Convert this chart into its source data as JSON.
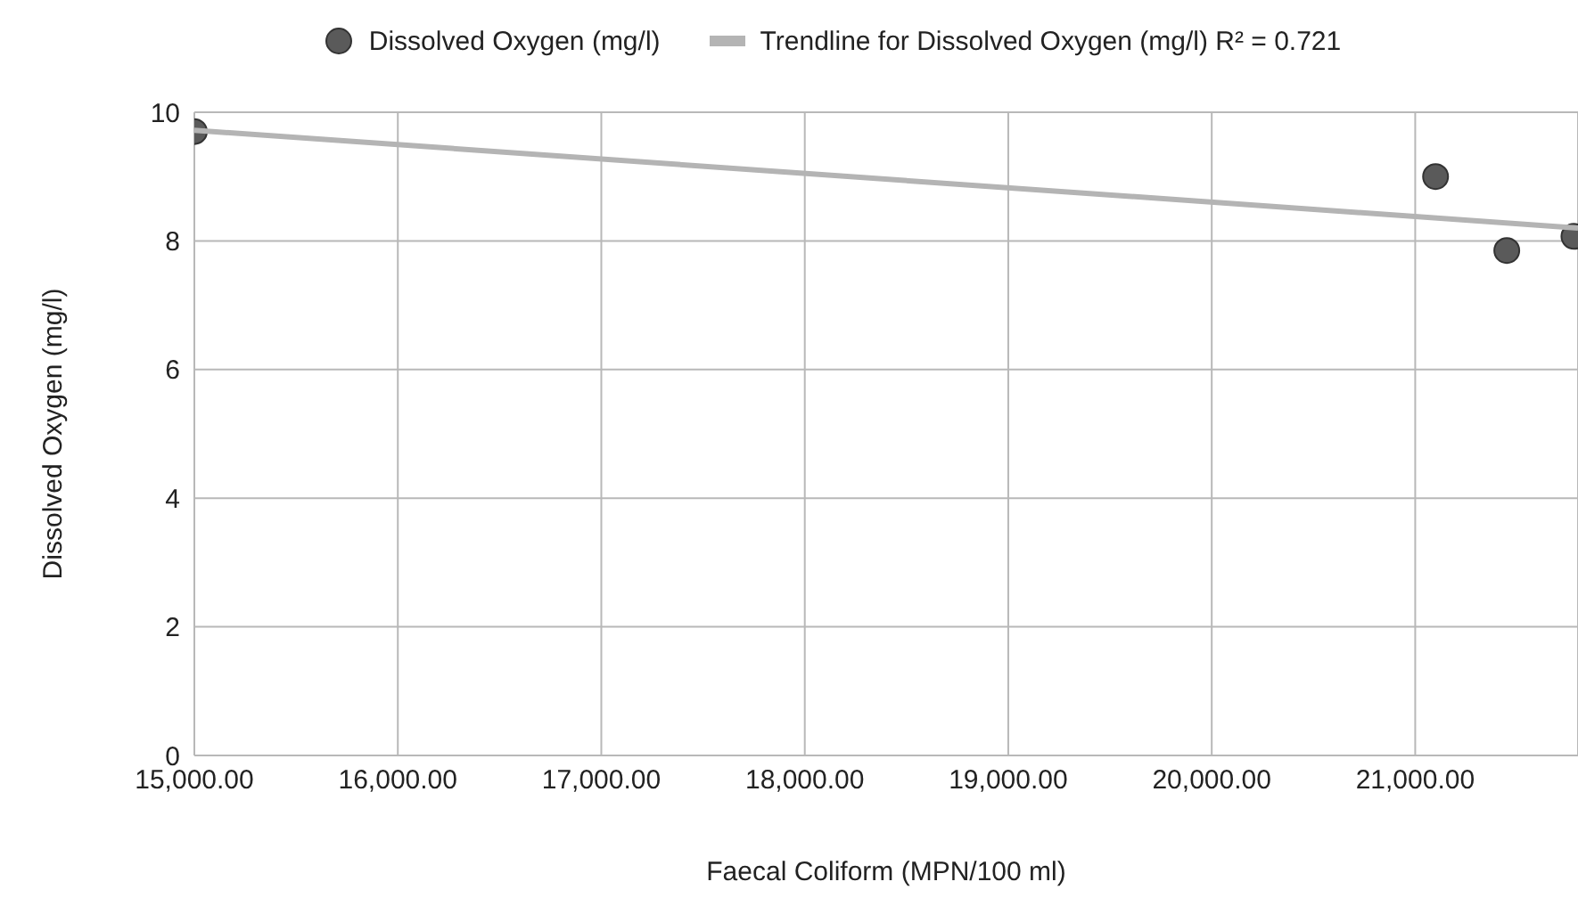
{
  "chart_data": {
    "type": "scatter",
    "xlabel": "Faecal Coliform (MPN/100 ml)",
    "ylabel": "Dissolved Oxygen (mg/l)",
    "series": [
      {
        "name": "Dissolved Oxygen (mg/l)",
        "marker": "circle",
        "color": "#5a5a5a",
        "x": [
          15000,
          21100,
          21450,
          21780
        ],
        "values": [
          9.7,
          9.0,
          7.85,
          8.07
        ]
      },
      {
        "name": "Trendline for Dissolved Oxygen (mg/l) R² = 0.721",
        "type": "line",
        "color": "#b4b4b4",
        "x": [
          15000,
          21800
        ],
        "values": [
          9.72,
          8.2
        ]
      }
    ],
    "xlim": [
      15000,
      21800
    ],
    "xticks": [
      {
        "value": 15000,
        "label": "15,000.00"
      },
      {
        "value": 16000,
        "label": "16,000.00"
      },
      {
        "value": 17000,
        "label": "17,000.00"
      },
      {
        "value": 18000,
        "label": "18,000.00"
      },
      {
        "value": 19000,
        "label": "19,000.00"
      },
      {
        "value": 20000,
        "label": "20,000.00"
      },
      {
        "value": 21000,
        "label": "21,000.00"
      }
    ],
    "ylim": [
      0,
      10
    ],
    "yticks": [
      0,
      2,
      4,
      6,
      8,
      10
    ],
    "grid": true,
    "legend": "top"
  }
}
